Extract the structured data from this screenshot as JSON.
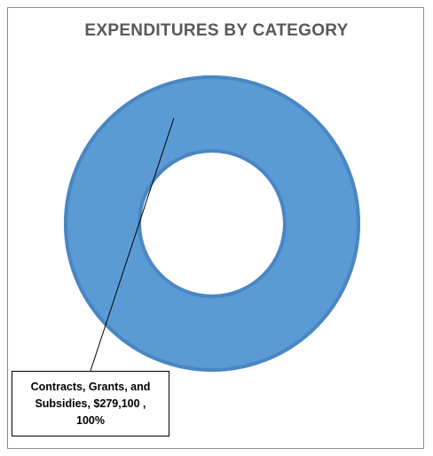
{
  "chart_data": {
    "type": "pie",
    "donut": true,
    "title": "EXPENDITURES BY CATEGORY",
    "slices": [
      {
        "category": "Contracts, Grants, and Subsidies",
        "value": 279100,
        "value_label": "$279,100",
        "percent": 100,
        "percent_label": "100%",
        "color": "#5b9bd5"
      }
    ],
    "data_label": {
      "line1": "Contracts, Grants, and",
      "line2": "Subsidies,  $279,100 ,",
      "line3": "100%"
    },
    "legend": "none",
    "colors": {
      "slice_fill": "#5b9bd5",
      "slice_edge": "#4a86c3",
      "title": "#595959",
      "frame_border": "#8c8c8c"
    }
  }
}
